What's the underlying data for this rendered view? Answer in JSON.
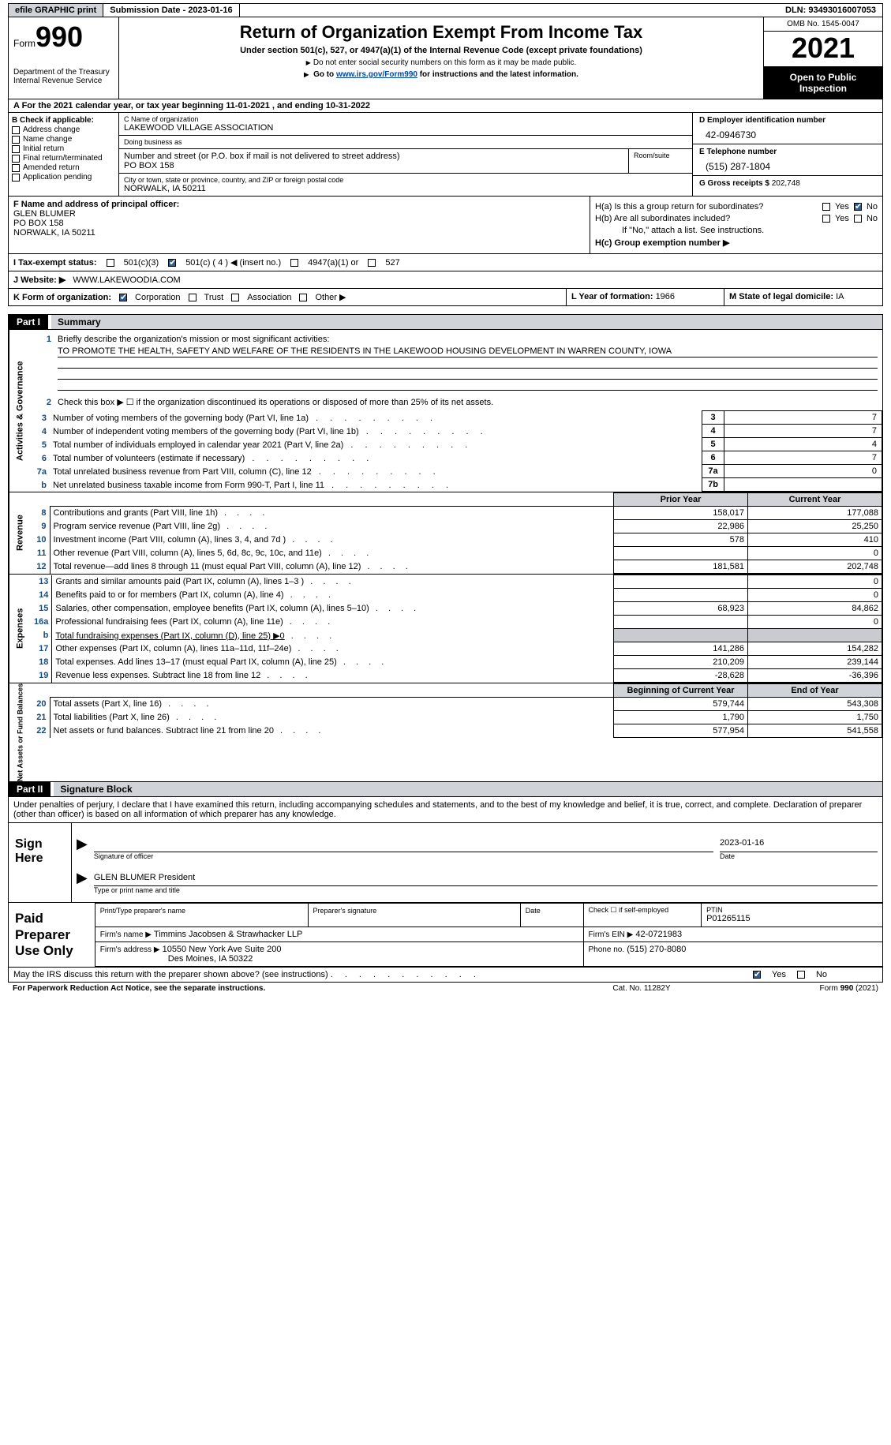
{
  "header": {
    "efile_btn": "efile GRAPHIC print",
    "submission_date_label": "Submission Date - 2023-01-16",
    "dln": "DLN: 93493016007053",
    "form_word": "Form",
    "form_no": "990",
    "title": "Return of Organization Exempt From Income Tax",
    "subtitle": "Under section 501(c), 527, or 4947(a)(1) of the Internal Revenue Code (except private foundations)",
    "note1": "Do not enter social security numbers on this form as it may be made public.",
    "note2_pre": "Go to ",
    "note2_link": "www.irs.gov/Form990",
    "note2_post": " for instructions and the latest information.",
    "dept": "Department of the Treasury",
    "irs": "Internal Revenue Service",
    "omb": "OMB No. 1545-0047",
    "year": "2021",
    "open_inspection": "Open to Public Inspection"
  },
  "period": {
    "text_pre": "A For the 2021 calendar year, or tax year beginning ",
    "begin": "11-01-2021",
    "mid": " , and ending ",
    "end": "10-31-2022"
  },
  "col_b": {
    "title": "B Check if applicable:",
    "items": [
      "Address change",
      "Name change",
      "Initial return",
      "Final return/terminated",
      "Amended return",
      "Application pending"
    ]
  },
  "col_c": {
    "name_label": "C Name of organization",
    "name": "LAKEWOOD VILLAGE ASSOCIATION",
    "dba_label": "Doing business as",
    "street_label": "Number and street (or P.O. box if mail is not delivered to street address)",
    "street": "PO BOX 158",
    "room_label": "Room/suite",
    "city_label": "City or town, state or province, country, and ZIP or foreign postal code",
    "city": "NORWALK, IA  50211"
  },
  "col_d": {
    "ein_label": "D Employer identification number",
    "ein": "42-0946730",
    "phone_label": "E Telephone number",
    "phone": "(515) 287-1804",
    "gross_label": "G Gross receipts $",
    "gross": "202,748"
  },
  "fgh": {
    "f_label": "F  Name and address of principal officer:",
    "f_name": "GLEN BLUMER",
    "f_street": "PO BOX 158",
    "f_city": "NORWALK, IA  50211",
    "ha_label": "H(a)  Is this a group return for subordinates?",
    "hb_label": "H(b)  Are all subordinates included?",
    "hb_note": "If \"No,\" attach a list. See instructions.",
    "hc_label": "H(c)  Group exemption number ▶",
    "yes": "Yes",
    "no": "No"
  },
  "i_line": {
    "label": "I  Tax-exempt status:",
    "o1": "501(c)(3)",
    "o2": "501(c) ( 4 ) ◀ (insert no.)",
    "o3": "4947(a)(1) or",
    "o4": "527"
  },
  "j_line": {
    "label": "J  Website: ▶",
    "value": "WWW.LAKEWOODIA.COM"
  },
  "k_line": {
    "label": "K Form of organization:",
    "o1": "Corporation",
    "o2": "Trust",
    "o3": "Association",
    "o4": "Other ▶",
    "l_label": "L Year of formation: ",
    "l_val": "1966",
    "m_label": "M State of legal domicile: ",
    "m_val": "IA"
  },
  "part1": {
    "hdr": "Part I",
    "title": "Summary",
    "q1": "Briefly describe the organization's mission or most significant activities:",
    "mission": "TO PROMOTE THE HEALTH, SAFETY AND WELFARE OF THE RESIDENTS IN THE LAKEWOOD HOUSING DEVELOPMENT IN WARREN COUNTY, IOWA",
    "q2": "Check this box ▶ ☐ if the organization discontinued its operations or disposed of more than 25% of its net assets.",
    "side_a": "Activities & Governance",
    "side_r": "Revenue",
    "side_e": "Expenses",
    "side_n": "Net Assets or Fund Balances",
    "rows_gov": [
      {
        "n": "3",
        "d": "Number of voting members of the governing body (Part VI, line 1a)",
        "box": "3",
        "v": "7"
      },
      {
        "n": "4",
        "d": "Number of independent voting members of the governing body (Part VI, line 1b)",
        "box": "4",
        "v": "7"
      },
      {
        "n": "5",
        "d": "Total number of individuals employed in calendar year 2021 (Part V, line 2a)",
        "box": "5",
        "v": "4"
      },
      {
        "n": "6",
        "d": "Total number of volunteers (estimate if necessary)",
        "box": "6",
        "v": "7"
      },
      {
        "n": "7a",
        "d": "Total unrelated business revenue from Part VIII, column (C), line 12",
        "box": "7a",
        "v": "0"
      },
      {
        "n": "b",
        "d": "Net unrelated business taxable income from Form 990-T, Part I, line 11",
        "box": "7b",
        "v": ""
      }
    ],
    "hdr_prior": "Prior Year",
    "hdr_current": "Current Year",
    "rows_rev": [
      {
        "n": "8",
        "d": "Contributions and grants (Part VIII, line 1h)",
        "p": "158,017",
        "c": "177,088"
      },
      {
        "n": "9",
        "d": "Program service revenue (Part VIII, line 2g)",
        "p": "22,986",
        "c": "25,250"
      },
      {
        "n": "10",
        "d": "Investment income (Part VIII, column (A), lines 3, 4, and 7d )",
        "p": "578",
        "c": "410"
      },
      {
        "n": "11",
        "d": "Other revenue (Part VIII, column (A), lines 5, 6d, 8c, 9c, 10c, and 11e)",
        "p": "",
        "c": "0"
      },
      {
        "n": "12",
        "d": "Total revenue—add lines 8 through 11 (must equal Part VIII, column (A), line 12)",
        "p": "181,581",
        "c": "202,748"
      }
    ],
    "rows_exp": [
      {
        "n": "13",
        "d": "Grants and similar amounts paid (Part IX, column (A), lines 1–3 )",
        "p": "",
        "c": "0"
      },
      {
        "n": "14",
        "d": "Benefits paid to or for members (Part IX, column (A), line 4)",
        "p": "",
        "c": "0"
      },
      {
        "n": "15",
        "d": "Salaries, other compensation, employee benefits (Part IX, column (A), lines 5–10)",
        "p": "68,923",
        "c": "84,862"
      },
      {
        "n": "16a",
        "d": "Professional fundraising fees (Part IX, column (A), line 11e)",
        "p": "",
        "c": "0"
      },
      {
        "n": "b",
        "d": "Total fundraising expenses (Part IX, column (D), line 25) ▶0",
        "p": "grey",
        "c": "grey"
      },
      {
        "n": "17",
        "d": "Other expenses (Part IX, column (A), lines 11a–11d, 11f–24e)",
        "p": "141,286",
        "c": "154,282"
      },
      {
        "n": "18",
        "d": "Total expenses. Add lines 13–17 (must equal Part IX, column (A), line 25)",
        "p": "210,209",
        "c": "239,144"
      },
      {
        "n": "19",
        "d": "Revenue less expenses. Subtract line 18 from line 12",
        "p": "-28,628",
        "c": "-36,396"
      }
    ],
    "hdr_begin": "Beginning of Current Year",
    "hdr_end": "End of Year",
    "rows_net": [
      {
        "n": "20",
        "d": "Total assets (Part X, line 16)",
        "p": "579,744",
        "c": "543,308"
      },
      {
        "n": "21",
        "d": "Total liabilities (Part X, line 26)",
        "p": "1,790",
        "c": "1,750"
      },
      {
        "n": "22",
        "d": "Net assets or fund balances. Subtract line 21 from line 20",
        "p": "577,954",
        "c": "541,558"
      }
    ]
  },
  "part2": {
    "hdr": "Part II",
    "title": "Signature Block",
    "decl": "Under penalties of perjury, I declare that I have examined this return, including accompanying schedules and statements, and to the best of my knowledge and belief, it is true, correct, and complete. Declaration of preparer (other than officer) is based on all information of which preparer has any knowledge."
  },
  "sign": {
    "left": "Sign Here",
    "sig_of_officer": "Signature of officer",
    "date_label": "Date",
    "date_val": "2023-01-16",
    "officer": "GLEN BLUMER  President",
    "officer_label": "Type or print name and title"
  },
  "paid": {
    "left": "Paid Preparer Use Only",
    "r1c1": "Print/Type preparer's name",
    "r1c2": "Preparer's signature",
    "r1c3": "Date",
    "r1c4a": "Check ☐ if self-employed",
    "r1c5_label": "PTIN",
    "r1c5": "P01265115",
    "r2_label": "Firm's name    ▶",
    "r2_val": "Timmins Jacobsen & Strawhacker LLP",
    "r2_ein_label": "Firm's EIN ▶",
    "r2_ein": "42-0721983",
    "r3_label": "Firm's address ▶",
    "r3_val1": "10550 New York Ave Suite 200",
    "r3_val2": "Des Moines, IA  50322",
    "r3_phone_label": "Phone no.",
    "r3_phone": "(515) 270-8080"
  },
  "footer": {
    "q": "May the IRS discuss this return with the preparer shown above? (see instructions)",
    "yes": "Yes",
    "no": "No",
    "pra": "For Paperwork Reduction Act Notice, see the separate instructions.",
    "cat": "Cat. No. 11282Y",
    "form": "Form 990 (2021)"
  }
}
